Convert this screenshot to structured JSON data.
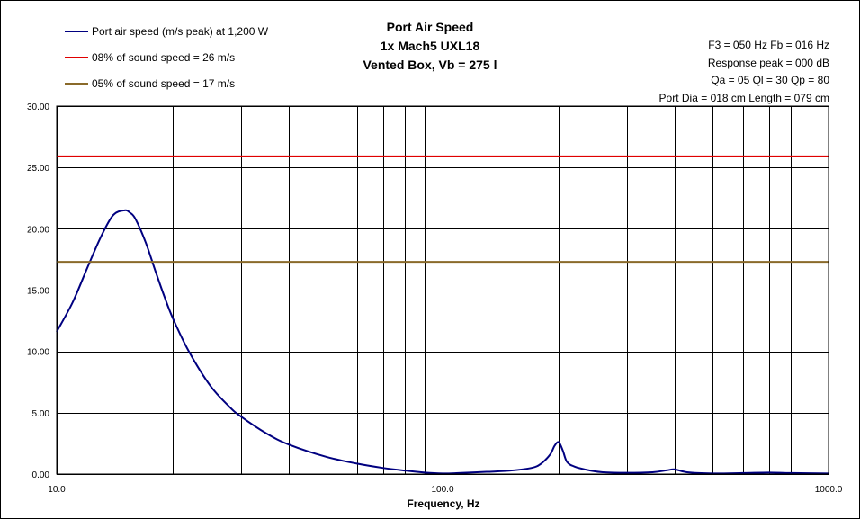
{
  "legend": [
    {
      "label": "Port air speed (m/s peak) at 1,200 W",
      "color": "#000080"
    },
    {
      "label": "08% of sound speed = 26 m/s",
      "color": "#e00000"
    },
    {
      "label": "05% of sound speed = 17 m/s",
      "color": "#8a6a2a"
    }
  ],
  "title": {
    "line1": "Port Air Speed",
    "line2": "1x Mach5 UXL18",
    "line3": "Vented Box, Vb = 275 l"
  },
  "params": {
    "line1": "F3 = 050 Hz  Fb = 016 Hz",
    "line2": "Response peak = 000 dB",
    "line3": "Qa = 05  Ql = 30  Qp = 80",
    "line4": "Port Dia = 018 cm  Length = 079 cm"
  },
  "chart_data": {
    "type": "line",
    "xlabel": "Frequency, Hz",
    "ylabel": "",
    "xscale": "log",
    "xlim": [
      10,
      1000
    ],
    "ylim": [
      0,
      30
    ],
    "grid": true,
    "legend_position": "top-left",
    "y_ticks": [
      "0.00",
      "5.00",
      "10.00",
      "15.00",
      "20.00",
      "25.00",
      "30.00"
    ],
    "x_tick_labels": [
      "10.0",
      "100.0",
      "1000.0"
    ],
    "series": [
      {
        "name": "Port air speed (m/s peak) at 1,200 W",
        "color": "#000080",
        "x": [
          10,
          11,
          12,
          13,
          14,
          15,
          15.5,
          16,
          17,
          18,
          19,
          20,
          22,
          25,
          28,
          30,
          35,
          40,
          50,
          60,
          70,
          80,
          90,
          100,
          110,
          130,
          150,
          170,
          180,
          190,
          195,
          200,
          205,
          210,
          220,
          240,
          260,
          300,
          350,
          380,
          400,
          430,
          500,
          600,
          700,
          800,
          1000
        ],
        "y": [
          11.6,
          14.0,
          16.8,
          19.3,
          21.1,
          21.5,
          21.3,
          20.8,
          18.9,
          16.6,
          14.5,
          12.7,
          10.0,
          7.2,
          5.5,
          4.7,
          3.3,
          2.4,
          1.4,
          0.85,
          0.5,
          0.28,
          0.12,
          0.05,
          0.08,
          0.18,
          0.28,
          0.5,
          0.85,
          1.6,
          2.3,
          2.6,
          1.9,
          1.0,
          0.6,
          0.3,
          0.15,
          0.1,
          0.15,
          0.3,
          0.38,
          0.15,
          0.05,
          0.08,
          0.12,
          0.08,
          0.05
        ]
      },
      {
        "name": "08% of sound speed = 26 m/s",
        "color": "#e00000",
        "x": [
          10,
          1000
        ],
        "y": [
          25.9,
          25.9
        ]
      },
      {
        "name": "05% of sound speed = 17 m/s",
        "color": "#8a6a2a",
        "x": [
          10,
          1000
        ],
        "y": [
          17.3,
          17.3
        ]
      }
    ]
  }
}
